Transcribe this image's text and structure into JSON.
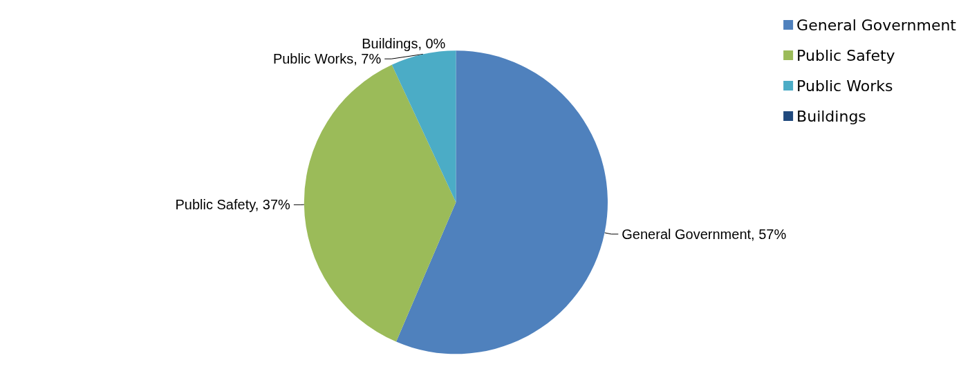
{
  "chart_data": {
    "type": "pie",
    "categories": [
      "General Government",
      "Public Safety",
      "Public Works",
      "Buildings"
    ],
    "values": [
      57,
      37,
      7,
      0
    ],
    "colors": [
      "#4f81bd",
      "#9bbb59",
      "#4bacc6",
      "#1f497d"
    ],
    "value_labels": [
      "General Government, 57%",
      "Public Safety, 37%",
      "Public Works, 7%",
      "Buildings, 0%"
    ],
    "legend": "top right"
  }
}
